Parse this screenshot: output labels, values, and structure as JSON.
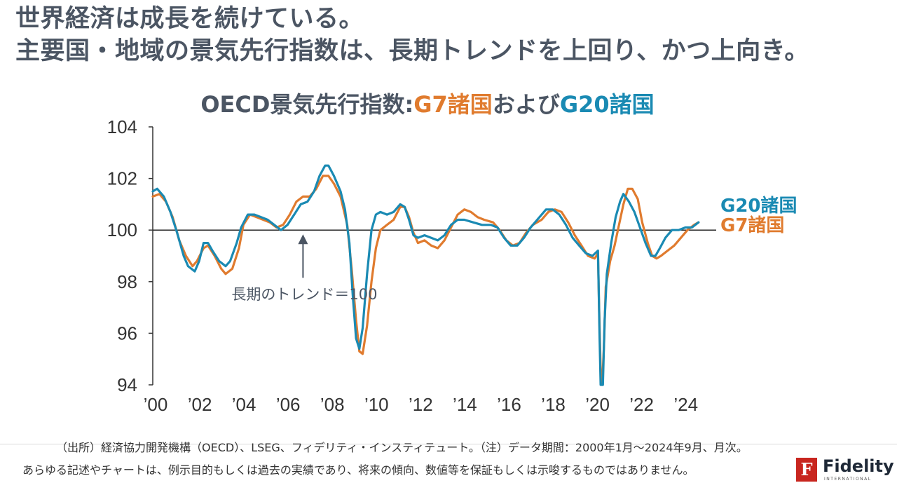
{
  "headline": {
    "line1": "世界経済は成長を続けている。",
    "line2": "主要国・地域の景気先行指数は、長期トレンドを上回り、かつ上向き。"
  },
  "chart_title": {
    "prefix": "OECD景気先行指数:",
    "g7": "G7諸国",
    "middle": "および",
    "g20": "G20諸国"
  },
  "chart_data": {
    "type": "line",
    "title": "OECD景気先行指数:G7諸国およびG20諸国",
    "xlabel": "",
    "ylabel": "",
    "ylim": [
      94,
      104
    ],
    "xlim": [
      2000,
      2025.5
    ],
    "y_ticks": [
      "104",
      "102",
      "100",
      "98",
      "96",
      "94"
    ],
    "x_ticks": [
      "’00",
      "’02",
      "’04",
      "’06",
      "’08",
      "’10",
      "’12",
      "’14",
      "’16",
      "’18",
      "’20",
      "’22",
      "’24"
    ],
    "reference_line": 100,
    "annotation": "長期のトレンド＝100",
    "legend": [
      "G20諸国",
      "G7諸国"
    ],
    "colors": {
      "G7": "#e07b2e",
      "G20": "#1a8ab3"
    },
    "series": [
      {
        "name": "G7諸国",
        "points": [
          [
            2000.0,
            101.3
          ],
          [
            2000.3,
            101.4
          ],
          [
            2000.6,
            101.1
          ],
          [
            2000.9,
            100.5
          ],
          [
            2001.2,
            99.6
          ],
          [
            2001.5,
            99.0
          ],
          [
            2001.8,
            98.6
          ],
          [
            2002.0,
            98.8
          ],
          [
            2002.3,
            99.3
          ],
          [
            2002.5,
            99.4
          ],
          [
            2002.8,
            99.0
          ],
          [
            2003.1,
            98.5
          ],
          [
            2003.3,
            98.3
          ],
          [
            2003.6,
            98.5
          ],
          [
            2003.9,
            99.3
          ],
          [
            2004.1,
            100.2
          ],
          [
            2004.4,
            100.6
          ],
          [
            2004.7,
            100.5
          ],
          [
            2005.0,
            100.4
          ],
          [
            2005.3,
            100.3
          ],
          [
            2005.6,
            100.1
          ],
          [
            2005.9,
            100.2
          ],
          [
            2006.2,
            100.6
          ],
          [
            2006.5,
            101.1
          ],
          [
            2006.8,
            101.3
          ],
          [
            2007.1,
            101.3
          ],
          [
            2007.4,
            101.6
          ],
          [
            2007.7,
            102.1
          ],
          [
            2007.95,
            102.1
          ],
          [
            2008.2,
            101.8
          ],
          [
            2008.5,
            101.3
          ],
          [
            2008.8,
            100.2
          ],
          [
            2009.0,
            98.5
          ],
          [
            2009.2,
            96.5
          ],
          [
            2009.35,
            95.3
          ],
          [
            2009.5,
            95.2
          ],
          [
            2009.7,
            96.3
          ],
          [
            2009.9,
            98.0
          ],
          [
            2010.1,
            99.3
          ],
          [
            2010.3,
            100.0
          ],
          [
            2010.6,
            100.2
          ],
          [
            2010.9,
            100.4
          ],
          [
            2011.2,
            100.9
          ],
          [
            2011.4,
            100.9
          ],
          [
            2011.6,
            100.5
          ],
          [
            2011.8,
            99.9
          ],
          [
            2012.0,
            99.5
          ],
          [
            2012.3,
            99.6
          ],
          [
            2012.6,
            99.4
          ],
          [
            2012.9,
            99.3
          ],
          [
            2013.2,
            99.6
          ],
          [
            2013.5,
            100.1
          ],
          [
            2013.8,
            100.6
          ],
          [
            2014.1,
            100.8
          ],
          [
            2014.4,
            100.7
          ],
          [
            2014.7,
            100.5
          ],
          [
            2015.0,
            100.4
          ],
          [
            2015.4,
            100.3
          ],
          [
            2015.7,
            100.0
          ],
          [
            2016.0,
            99.6
          ],
          [
            2016.3,
            99.4
          ],
          [
            2016.6,
            99.5
          ],
          [
            2016.9,
            99.9
          ],
          [
            2017.2,
            100.2
          ],
          [
            2017.6,
            100.4
          ],
          [
            2017.9,
            100.7
          ],
          [
            2018.2,
            100.8
          ],
          [
            2018.5,
            100.7
          ],
          [
            2018.8,
            100.3
          ],
          [
            2019.1,
            99.8
          ],
          [
            2019.4,
            99.4
          ],
          [
            2019.7,
            99.0
          ],
          [
            2020.0,
            98.9
          ],
          [
            2020.15,
            99.1
          ],
          [
            2020.2,
            97.0
          ],
          [
            2020.27,
            94.6
          ],
          [
            2020.34,
            94.0
          ],
          [
            2020.42,
            95.5
          ],
          [
            2020.5,
            97.8
          ],
          [
            2020.7,
            98.8
          ],
          [
            2020.9,
            99.4
          ],
          [
            2021.1,
            100.2
          ],
          [
            2021.3,
            101.0
          ],
          [
            2021.5,
            101.6
          ],
          [
            2021.7,
            101.6
          ],
          [
            2021.95,
            101.2
          ],
          [
            2022.15,
            100.3
          ],
          [
            2022.4,
            99.5
          ],
          [
            2022.6,
            99.0
          ],
          [
            2022.8,
            98.9
          ],
          [
            2023.0,
            99.0
          ],
          [
            2023.3,
            99.2
          ],
          [
            2023.6,
            99.4
          ],
          [
            2023.9,
            99.7
          ],
          [
            2024.2,
            100.0
          ],
          [
            2024.5,
            100.2
          ],
          [
            2024.7,
            100.3
          ]
        ]
      },
      {
        "name": "G20諸国",
        "points": [
          [
            2000.0,
            101.5
          ],
          [
            2000.2,
            101.6
          ],
          [
            2000.5,
            101.3
          ],
          [
            2000.8,
            100.7
          ],
          [
            2001.1,
            99.9
          ],
          [
            2001.4,
            99.0
          ],
          [
            2001.6,
            98.6
          ],
          [
            2001.9,
            98.4
          ],
          [
            2002.1,
            98.8
          ],
          [
            2002.3,
            99.5
          ],
          [
            2002.5,
            99.5
          ],
          [
            2002.7,
            99.2
          ],
          [
            2003.0,
            98.8
          ],
          [
            2003.3,
            98.6
          ],
          [
            2003.5,
            98.8
          ],
          [
            2003.8,
            99.5
          ],
          [
            2004.0,
            100.1
          ],
          [
            2004.3,
            100.6
          ],
          [
            2004.6,
            100.6
          ],
          [
            2004.9,
            100.5
          ],
          [
            2005.2,
            100.4
          ],
          [
            2005.5,
            100.2
          ],
          [
            2005.8,
            100.0
          ],
          [
            2006.1,
            100.2
          ],
          [
            2006.4,
            100.6
          ],
          [
            2006.7,
            101.0
          ],
          [
            2007.0,
            101.1
          ],
          [
            2007.3,
            101.5
          ],
          [
            2007.55,
            102.1
          ],
          [
            2007.8,
            102.5
          ],
          [
            2007.95,
            102.5
          ],
          [
            2008.2,
            102.1
          ],
          [
            2008.5,
            101.5
          ],
          [
            2008.7,
            100.8
          ],
          [
            2008.9,
            99.5
          ],
          [
            2009.05,
            97.5
          ],
          [
            2009.2,
            95.8
          ],
          [
            2009.35,
            95.4
          ],
          [
            2009.5,
            96.2
          ],
          [
            2009.7,
            98.3
          ],
          [
            2009.9,
            100.0
          ],
          [
            2010.1,
            100.6
          ],
          [
            2010.3,
            100.7
          ],
          [
            2010.6,
            100.6
          ],
          [
            2010.9,
            100.7
          ],
          [
            2011.2,
            101.0
          ],
          [
            2011.4,
            100.9
          ],
          [
            2011.6,
            100.4
          ],
          [
            2011.8,
            99.8
          ],
          [
            2012.0,
            99.7
          ],
          [
            2012.3,
            99.8
          ],
          [
            2012.6,
            99.7
          ],
          [
            2012.9,
            99.6
          ],
          [
            2013.2,
            99.8
          ],
          [
            2013.5,
            100.2
          ],
          [
            2013.8,
            100.4
          ],
          [
            2014.1,
            100.4
          ],
          [
            2014.5,
            100.3
          ],
          [
            2014.9,
            100.2
          ],
          [
            2015.3,
            100.2
          ],
          [
            2015.6,
            100.1
          ],
          [
            2015.9,
            99.7
          ],
          [
            2016.2,
            99.4
          ],
          [
            2016.5,
            99.4
          ],
          [
            2016.8,
            99.7
          ],
          [
            2017.1,
            100.1
          ],
          [
            2017.5,
            100.5
          ],
          [
            2017.8,
            100.8
          ],
          [
            2018.1,
            100.8
          ],
          [
            2018.4,
            100.6
          ],
          [
            2018.7,
            100.2
          ],
          [
            2019.0,
            99.7
          ],
          [
            2019.3,
            99.4
          ],
          [
            2019.6,
            99.1
          ],
          [
            2019.9,
            99.0
          ],
          [
            2020.15,
            99.2
          ],
          [
            2020.22,
            96.0
          ],
          [
            2020.27,
            94.0
          ],
          [
            2020.37,
            94.0
          ],
          [
            2020.45,
            96.5
          ],
          [
            2020.55,
            98.3
          ],
          [
            2020.75,
            99.5
          ],
          [
            2020.95,
            100.5
          ],
          [
            2021.15,
            101.1
          ],
          [
            2021.3,
            101.4
          ],
          [
            2021.55,
            101.1
          ],
          [
            2021.8,
            100.7
          ],
          [
            2022.05,
            100.1
          ],
          [
            2022.3,
            99.5
          ],
          [
            2022.55,
            99.0
          ],
          [
            2022.75,
            99.0
          ],
          [
            2022.95,
            99.3
          ],
          [
            2023.2,
            99.7
          ],
          [
            2023.5,
            100.0
          ],
          [
            2023.8,
            100.0
          ],
          [
            2024.1,
            100.1
          ],
          [
            2024.4,
            100.1
          ],
          [
            2024.7,
            100.3
          ]
        ]
      }
    ]
  },
  "footer": {
    "source": "（出所）経済協力開発機構（OECD）、LSEG、フィデリティ・インスティテュート。（注）データ期間：2000年1月～2024年9月、月次。",
    "disclaimer": "あらゆる記述やチャートは、例示目的もしくは過去の実績であり、将来の傾向、数値等を保証もしくは示唆するものではありません。"
  },
  "logo": {
    "mark": "F",
    "name": "Fidelity",
    "sub": "INTERNATIONAL"
  }
}
